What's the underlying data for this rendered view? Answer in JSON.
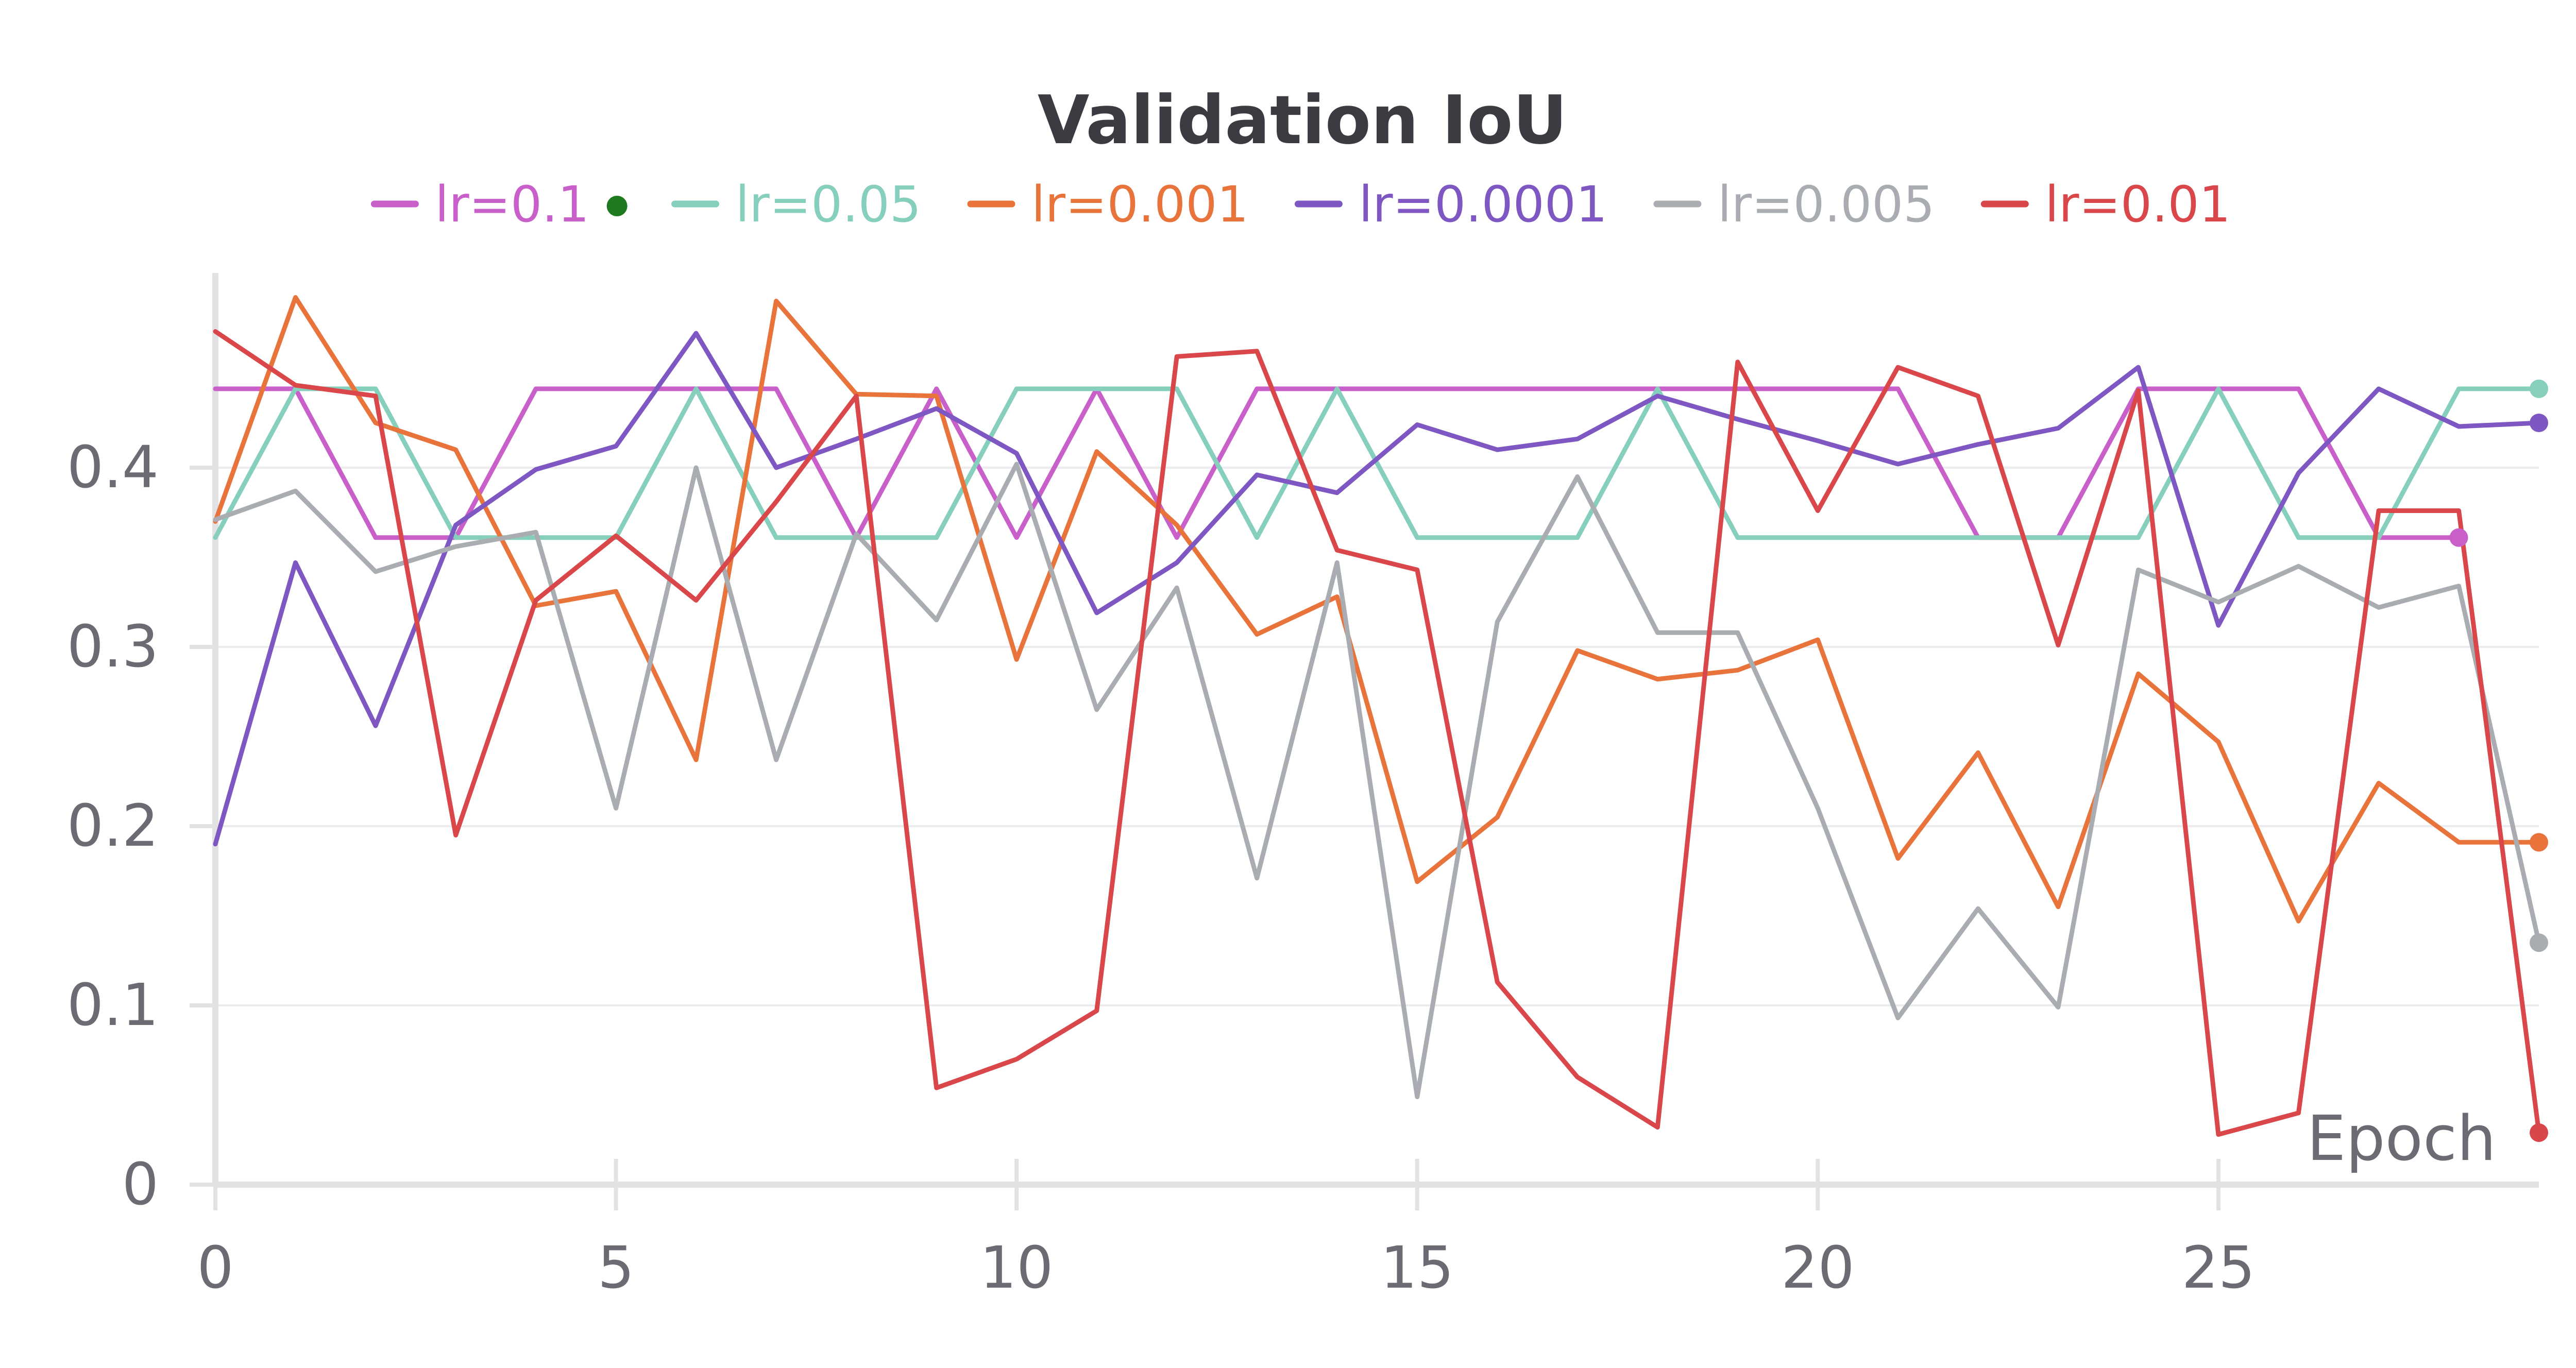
{
  "chart_data": {
    "type": "line",
    "title": "Validation IoU",
    "xlabel": "Epoch",
    "ylabel": "",
    "xlim": [
      0,
      29
    ],
    "ylim": [
      0,
      0.5
    ],
    "x_ticks": [
      "0",
      "5",
      "10",
      "15",
      "20",
      "25"
    ],
    "x_tick_values": [
      0,
      5,
      10,
      15,
      20,
      25
    ],
    "y_ticks": [
      "0",
      "0.1",
      "0.2",
      "0.3",
      "0.4"
    ],
    "y_tick_values": [
      0,
      0.1,
      0.2,
      0.3,
      0.4
    ],
    "grid": "horizontal",
    "legend_position": "top-center",
    "legend_marker_color": "#1f7a1f",
    "x": [
      0,
      1,
      2,
      3,
      4,
      5,
      6,
      7,
      8,
      9,
      10,
      11,
      12,
      13,
      14,
      15,
      16,
      17,
      18,
      19,
      20,
      21,
      22,
      23,
      24,
      25,
      26,
      27,
      28,
      29
    ],
    "series": [
      {
        "name": "lr=0.1",
        "color": "#c95fc9",
        "values": [
          0.444,
          0.444,
          0.361,
          0.361,
          0.444,
          0.444,
          0.444,
          0.444,
          0.361,
          0.444,
          0.361,
          0.444,
          0.361,
          0.444,
          0.444,
          0.444,
          0.444,
          0.444,
          0.444,
          0.444,
          0.444,
          0.444,
          0.361,
          0.361,
          0.444,
          0.444,
          0.444,
          0.361,
          0.361,
          null
        ],
        "end_marker": true
      },
      {
        "name": "lr=0.05",
        "color": "#86cfbd",
        "values": [
          0.361,
          0.444,
          0.444,
          0.361,
          0.361,
          0.361,
          0.444,
          0.361,
          0.361,
          0.361,
          0.444,
          0.444,
          0.444,
          0.361,
          0.444,
          0.361,
          0.361,
          0.361,
          0.444,
          0.361,
          0.361,
          0.361,
          0.361,
          0.361,
          0.361,
          0.444,
          0.361,
          0.361,
          0.444,
          0.444
        ],
        "end_marker": true
      },
      {
        "name": "lr=0.001",
        "color": "#e8743b",
        "values": [
          0.37,
          0.495,
          0.425,
          0.41,
          0.323,
          0.331,
          0.237,
          0.493,
          0.441,
          0.44,
          0.293,
          0.409,
          0.368,
          0.307,
          0.328,
          0.169,
          0.205,
          0.298,
          0.282,
          0.287,
          0.304,
          0.182,
          0.241,
          0.155,
          0.285,
          0.247,
          0.147,
          0.224,
          0.191,
          0.191
        ],
        "end_marker": true
      },
      {
        "name": "lr=0.0001",
        "color": "#7e57c2",
        "values": [
          0.19,
          0.347,
          0.256,
          0.368,
          0.399,
          0.412,
          0.475,
          0.4,
          0.416,
          0.433,
          0.408,
          0.319,
          0.347,
          0.396,
          0.386,
          0.424,
          0.41,
          0.416,
          0.44,
          0.427,
          0.415,
          0.402,
          0.413,
          0.422,
          0.456,
          0.312,
          0.397,
          0.444,
          0.423,
          0.425
        ],
        "end_marker": true
      },
      {
        "name": "lr=0.005",
        "color": "#a9adb2",
        "values": [
          0.371,
          0.387,
          0.342,
          0.356,
          0.364,
          0.21,
          0.4,
          0.237,
          0.363,
          0.315,
          0.402,
          0.265,
          0.333,
          0.171,
          0.347,
          0.049,
          0.314,
          0.395,
          0.308,
          0.308,
          0.21,
          0.093,
          0.154,
          0.099,
          0.343,
          0.325,
          0.345,
          0.322,
          0.334,
          0.135
        ],
        "end_marker": true
      },
      {
        "name": "lr=0.01",
        "color": "#d9474a",
        "values": [
          0.476,
          0.446,
          0.44,
          0.195,
          0.326,
          0.362,
          0.326,
          0.381,
          0.44,
          0.054,
          0.07,
          0.097,
          0.462,
          0.465,
          0.354,
          0.343,
          0.113,
          0.06,
          0.032,
          0.459,
          0.376,
          0.456,
          0.44,
          0.301,
          0.443,
          0.028,
          0.04,
          0.376,
          0.376,
          0.029
        ],
        "end_marker": true
      }
    ]
  },
  "colors": {
    "axis": "#e2e2e4",
    "grid": "#ececef",
    "tick_text": "#6b6b73",
    "title_text": "#3a3c42"
  }
}
